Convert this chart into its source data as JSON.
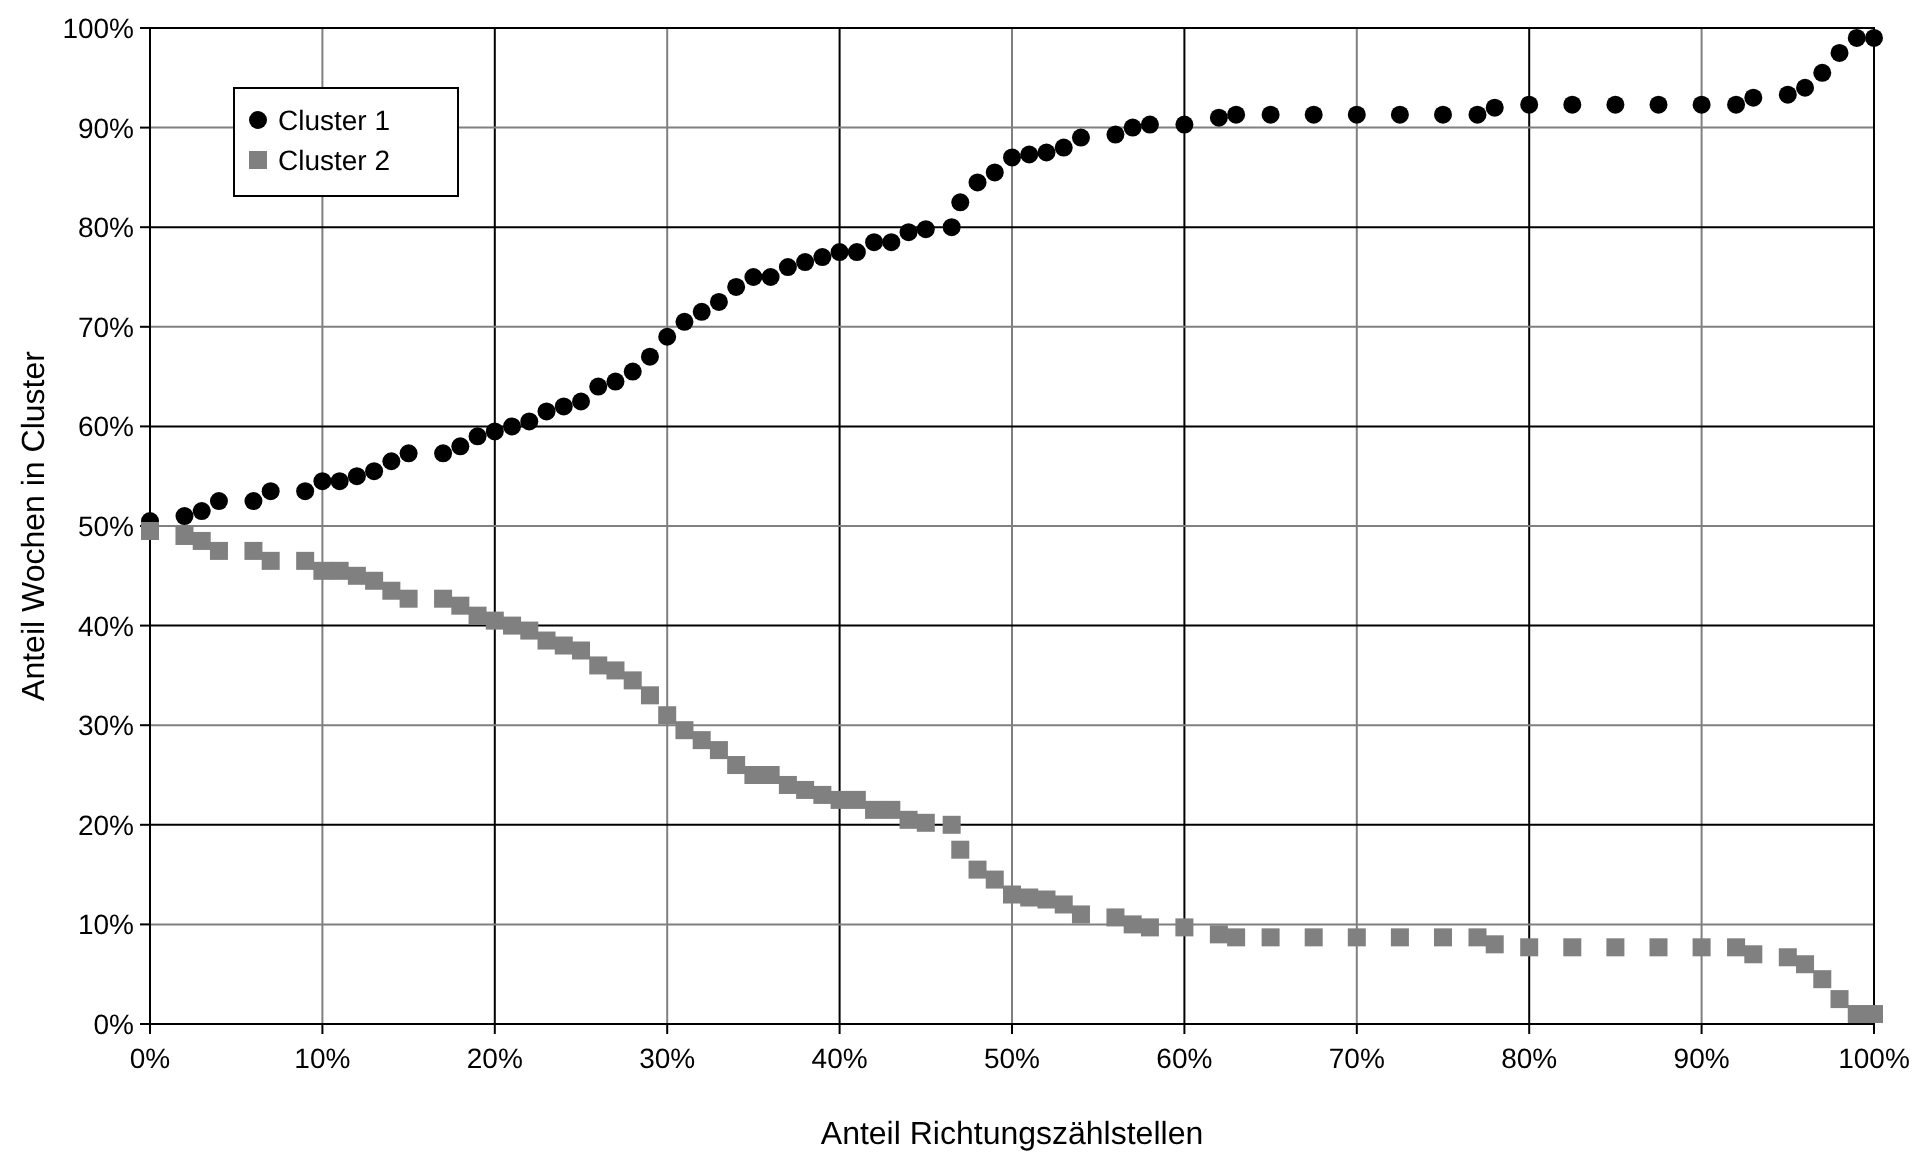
{
  "chart_data": {
    "type": "scatter",
    "xlabel": "Anteil Richtungszählstellen",
    "ylabel": "Anteil Wochen in Cluster",
    "xlim": [
      0,
      100
    ],
    "ylim": [
      0,
      100
    ],
    "xticks": [
      {
        "value": 0,
        "label": "0%"
      },
      {
        "value": 10,
        "label": "10%"
      },
      {
        "value": 20,
        "label": "20%"
      },
      {
        "value": 30,
        "label": "30%"
      },
      {
        "value": 40,
        "label": "40%"
      },
      {
        "value": 50,
        "label": "50%"
      },
      {
        "value": 60,
        "label": "60%"
      },
      {
        "value": 70,
        "label": "70%"
      },
      {
        "value": 80,
        "label": "80%"
      },
      {
        "value": 90,
        "label": "90%"
      },
      {
        "value": 100,
        "label": "100%"
      }
    ],
    "yticks": [
      {
        "value": 0,
        "label": "0%"
      },
      {
        "value": 10,
        "label": "10%"
      },
      {
        "value": 20,
        "label": "20%"
      },
      {
        "value": 30,
        "label": "30%"
      },
      {
        "value": 40,
        "label": "40%"
      },
      {
        "value": 50,
        "label": "50%"
      },
      {
        "value": 60,
        "label": "60%"
      },
      {
        "value": 70,
        "label": "70%"
      },
      {
        "value": 80,
        "label": "80%"
      },
      {
        "value": 90,
        "label": "90%"
      },
      {
        "value": 100,
        "label": "100%"
      }
    ],
    "grid": true,
    "legend": "top left",
    "x": [
      0,
      2,
      3,
      4,
      6,
      7,
      9,
      10,
      11,
      12,
      13,
      14,
      15,
      17,
      18,
      19,
      20,
      21,
      22,
      23,
      24,
      25,
      26,
      27,
      28,
      29,
      30,
      31,
      32,
      33,
      34,
      35,
      36,
      37,
      38,
      39,
      40,
      41,
      42,
      43,
      44,
      45,
      46.5,
      47,
      48,
      49,
      50,
      51,
      52,
      53,
      54,
      56,
      57,
      58,
      60,
      62,
      63,
      65,
      67.5,
      70,
      72.5,
      75,
      77,
      78,
      80,
      82.5,
      85,
      87.5,
      90,
      92,
      93,
      95,
      96,
      97,
      98,
      99,
      100
    ],
    "series": [
      {
        "name": "Cluster 1",
        "color": "#000000",
        "marker": "circle",
        "values": [
          50.5,
          51,
          51.5,
          52.5,
          52.5,
          53.5,
          53.5,
          54.5,
          54.5,
          55,
          55.5,
          56.5,
          57.3,
          57.3,
          58,
          59,
          59.5,
          60,
          60.5,
          61.5,
          62,
          62.5,
          64,
          64.5,
          65.5,
          67,
          69,
          70.5,
          71.5,
          72.5,
          74,
          75,
          75,
          76,
          76.5,
          77,
          77.5,
          77.5,
          78.5,
          78.5,
          79.5,
          79.8,
          80,
          82.5,
          84.5,
          85.5,
          87,
          87.3,
          87.5,
          88,
          89,
          89.3,
          90,
          90.3,
          90.3,
          91,
          91.3,
          91.3,
          91.3,
          91.3,
          91.3,
          91.3,
          91.3,
          92,
          92.3,
          92.3,
          92.3,
          92.3,
          92.3,
          92.3,
          93,
          93.3,
          94,
          95.5,
          97.5,
          99,
          99
        ]
      },
      {
        "name": "Cluster 2",
        "color": "#808080",
        "marker": "square",
        "values": [
          49.5,
          49,
          48.5,
          47.5,
          47.5,
          46.5,
          46.5,
          45.5,
          45.5,
          45,
          44.5,
          43.5,
          42.7,
          42.7,
          42,
          41,
          40.5,
          40,
          39.5,
          38.5,
          38,
          37.5,
          36,
          35.5,
          34.5,
          33,
          31,
          29.5,
          28.5,
          27.5,
          26,
          25,
          25,
          24,
          23.5,
          23,
          22.5,
          22.5,
          21.5,
          21.5,
          20.5,
          20.2,
          20,
          17.5,
          15.5,
          14.5,
          13,
          12.7,
          12.5,
          12,
          11,
          10.7,
          10,
          9.7,
          9.7,
          9,
          8.7,
          8.7,
          8.7,
          8.7,
          8.7,
          8.7,
          8.7,
          8,
          7.7,
          7.7,
          7.7,
          7.7,
          7.7,
          7.7,
          7,
          6.7,
          6,
          4.5,
          2.5,
          1,
          1
        ]
      }
    ]
  }
}
